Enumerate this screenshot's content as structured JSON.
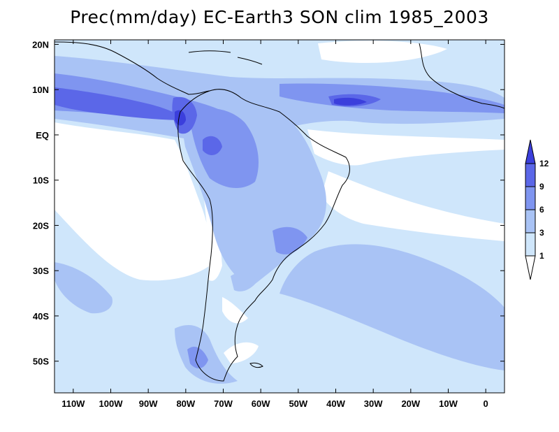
{
  "title": "Prec(mm/day) EC-Earth3 SON clim 1985_2003",
  "axes": {
    "lon_ticks": [
      {
        "lon": -110,
        "label": "110W"
      },
      {
        "lon": -100,
        "label": "100W"
      },
      {
        "lon": -90,
        "label": "90W"
      },
      {
        "lon": -80,
        "label": "80W"
      },
      {
        "lon": -70,
        "label": "70W"
      },
      {
        "lon": -60,
        "label": "60W"
      },
      {
        "lon": -50,
        "label": "50W"
      },
      {
        "lon": -40,
        "label": "40W"
      },
      {
        "lon": -30,
        "label": "30W"
      },
      {
        "lon": -20,
        "label": "20W"
      },
      {
        "lon": -10,
        "label": "10W"
      },
      {
        "lon": 0,
        "label": "0"
      }
    ],
    "lat_ticks": [
      {
        "lat": 20,
        "label": "20N"
      },
      {
        "lat": 10,
        "label": "10N"
      },
      {
        "lat": 0,
        "label": "EQ"
      },
      {
        "lat": -10,
        "label": "10S"
      },
      {
        "lat": -20,
        "label": "20S"
      },
      {
        "lat": -30,
        "label": "30S"
      },
      {
        "lat": -40,
        "label": "40S"
      },
      {
        "lat": -50,
        "label": "50S"
      }
    ],
    "lon_range": [
      -115,
      5
    ],
    "lat_range": [
      -57,
      21
    ]
  },
  "colorbar": {
    "levels": [
      "1",
      "3",
      "6",
      "9",
      "12"
    ],
    "colors": [
      "#ffffff",
      "#cfe6fb",
      "#a9c3f5",
      "#7f95f0",
      "#5b67e8",
      "#3b3fdc"
    ]
  },
  "colors": {
    "level_lt1": "#ffffff",
    "level_1_3": "#cfe6fb",
    "level_3_6": "#a9c3f5",
    "level_6_9": "#7f95f0",
    "level_9_12": "#5b67e8",
    "level_gt12": "#3b3fdc",
    "coast": "#000000"
  }
}
